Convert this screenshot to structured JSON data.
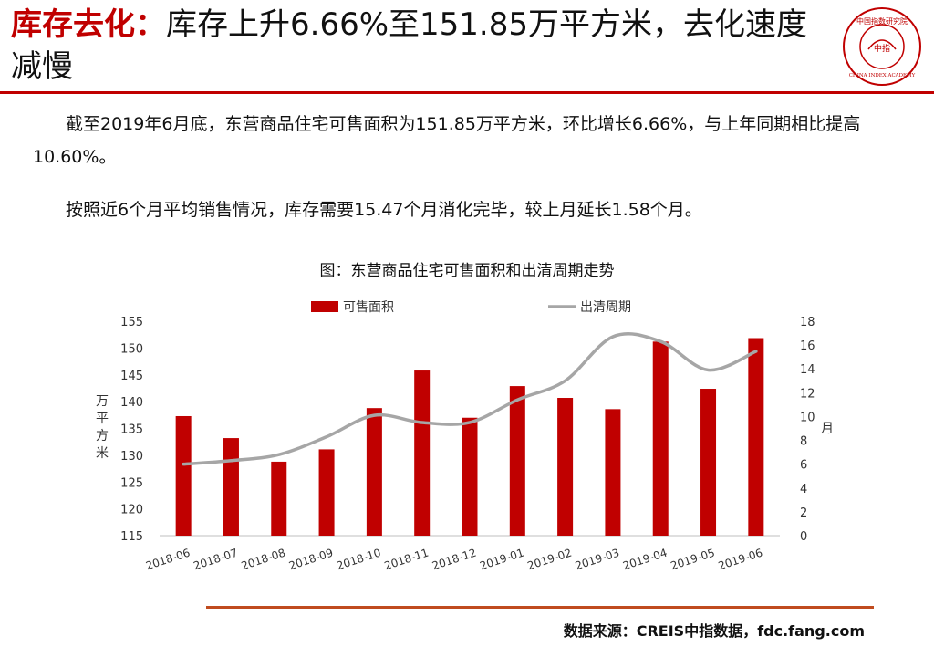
{
  "heading": {
    "highlight": "库存去化：",
    "rest": "库存上升6.66%至151.85万平方米，去化速度减慢"
  },
  "logo": {
    "top_text": "中国指数研究院",
    "center_text": "中指",
    "bottom_text": "CHINA INDEX ACADEMY"
  },
  "paragraphs": {
    "p1": "截至2019年6月底，东营商品住宅可售面积为151.85万平方米，环比增长6.66%，与上年同期相比提高10.60%。",
    "p2": "按照近6个月平均销售情况，库存需要15.47个月消化完毕，较上月延长1.58个月。"
  },
  "chart_data": {
    "type": "bar",
    "title": "图：东营商品住宅可售面积和出清周期走势",
    "categories": [
      "2018-06",
      "2018-07",
      "2018-08",
      "2018-09",
      "2018-10",
      "2018-11",
      "2018-12",
      "2019-01",
      "2019-02",
      "2019-03",
      "2019-04",
      "2019-05",
      "2019-06"
    ],
    "series": [
      {
        "name": "可售面积",
        "type": "bar",
        "axis": "left",
        "values": [
          137.3,
          133.2,
          128.8,
          131.1,
          138.8,
          145.8,
          137.0,
          142.9,
          140.7,
          138.6,
          151.2,
          142.4,
          151.85
        ]
      },
      {
        "name": "出清周期",
        "type": "line",
        "axis": "right",
        "values": [
          6.0,
          6.3,
          6.8,
          8.3,
          10.1,
          9.5,
          9.5,
          11.4,
          13.0,
          16.7,
          16.3,
          13.9,
          15.47
        ]
      }
    ],
    "ylabel": "万平方米",
    "y2label": "月",
    "ylim": [
      115,
      155
    ],
    "y2lim": [
      0,
      18
    ],
    "yticks": [
      115,
      120,
      125,
      130,
      135,
      140,
      145,
      150,
      155
    ],
    "y2ticks": [
      0,
      2,
      4,
      6,
      8,
      10,
      12,
      14,
      16,
      18
    ],
    "legend_position": "top",
    "grid": false,
    "colors": {
      "bar": "#c00000",
      "line": "#a6a6a6"
    }
  },
  "source": "数据来源：CREIS中指数据，fdc.fang.com"
}
